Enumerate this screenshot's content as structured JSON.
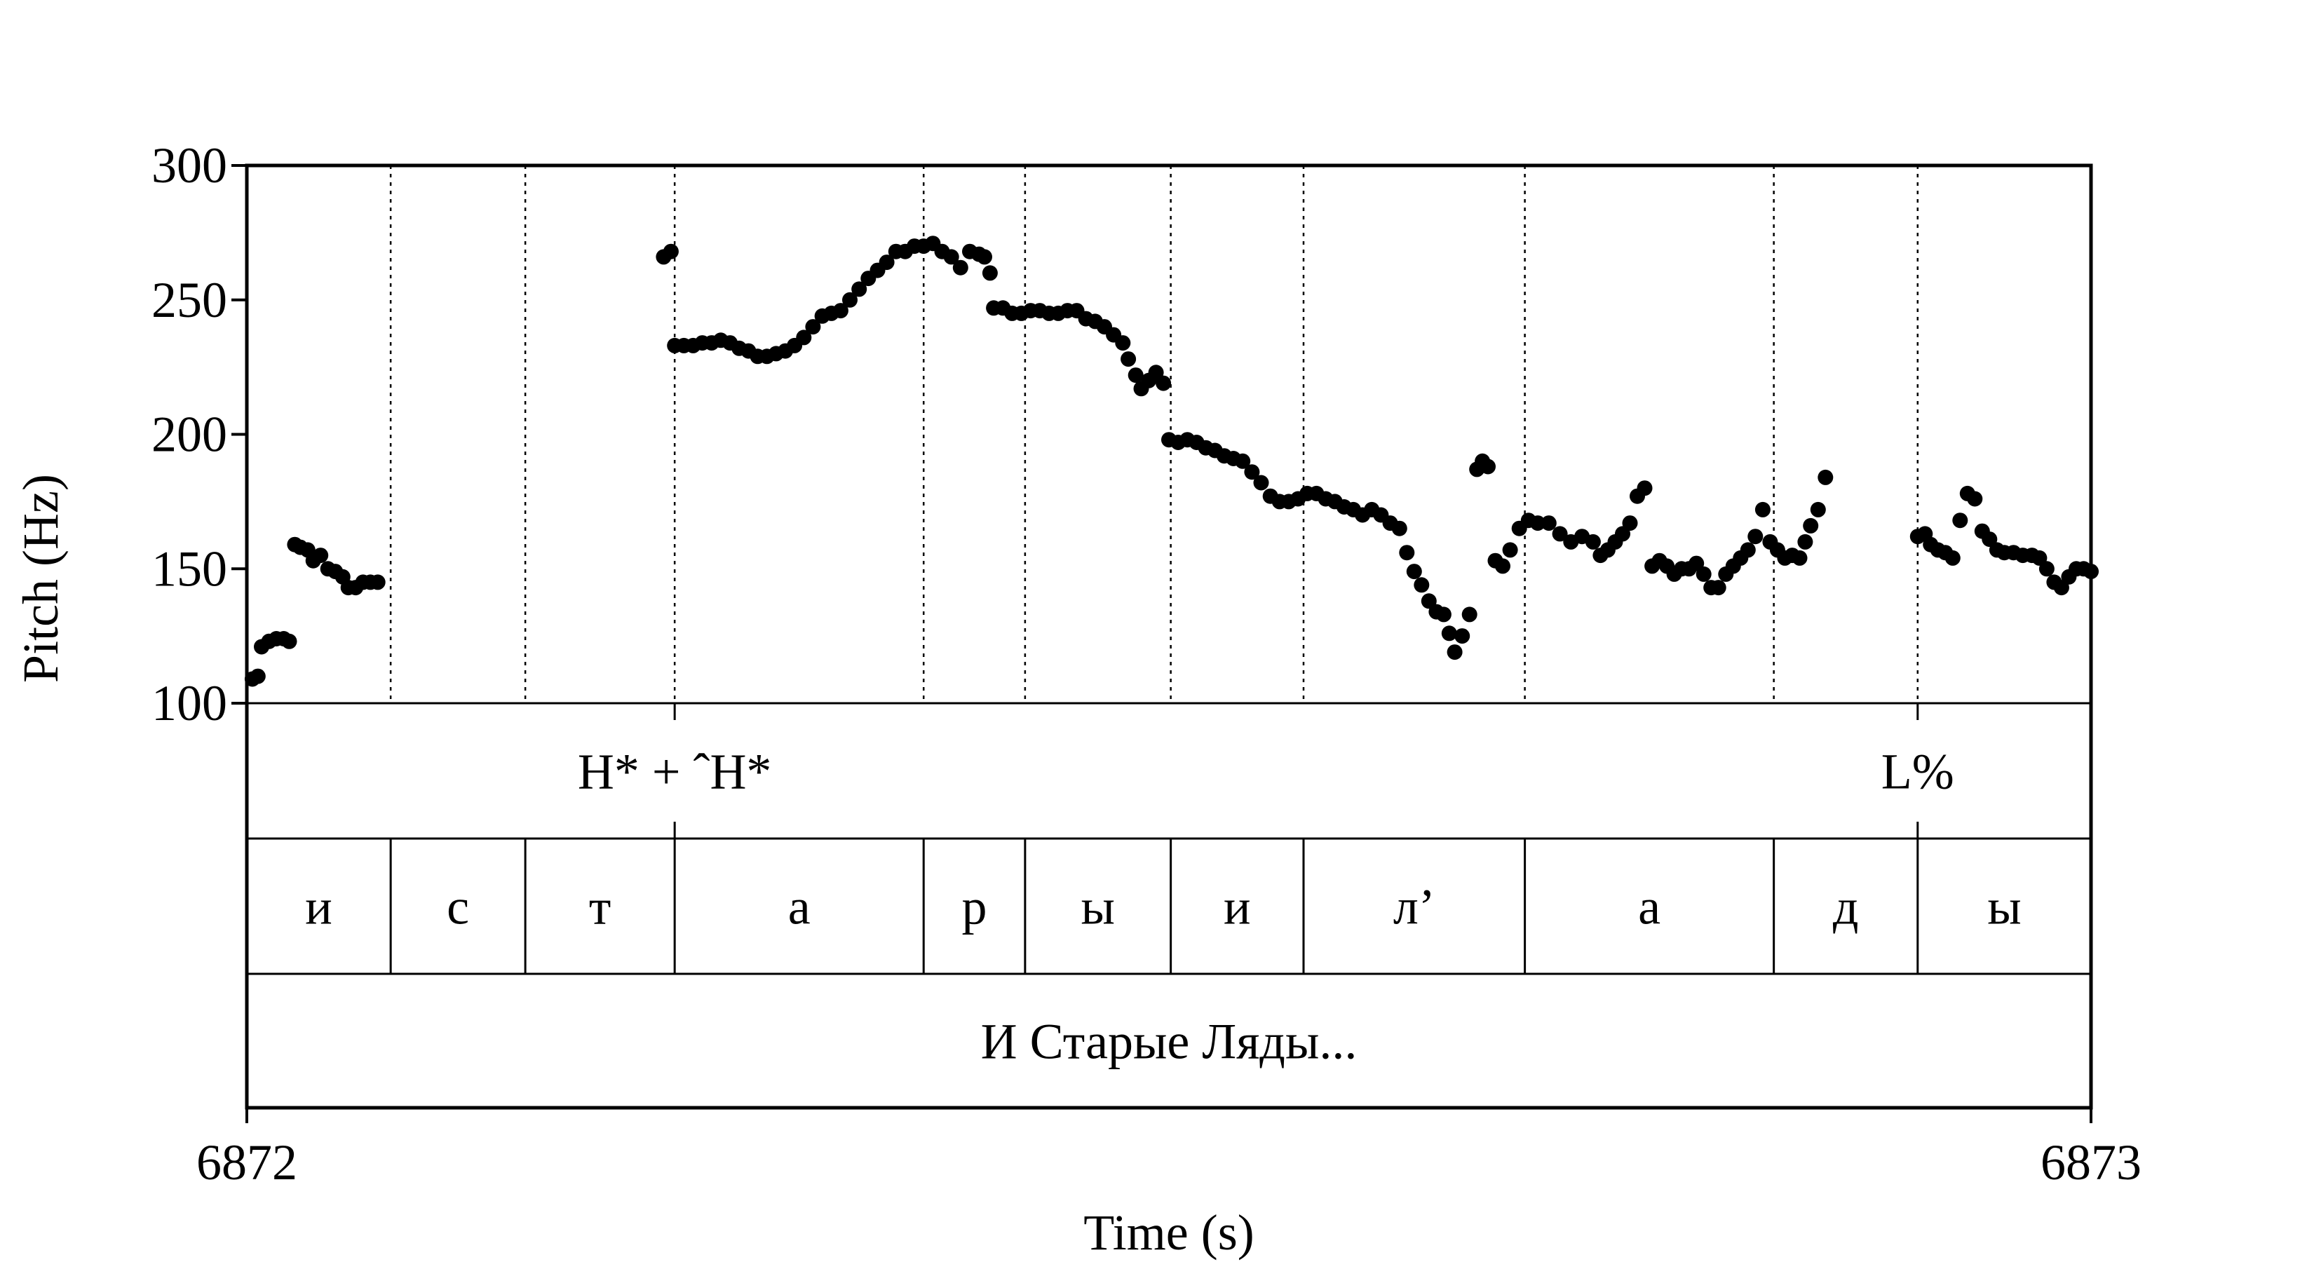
{
  "chart_data": {
    "type": "scatter",
    "title": "",
    "xlabel": "Time (s)",
    "ylabel": "Pitch (Hz)",
    "xlim": [
      6872,
      6873
    ],
    "ylim": [
      100,
      300
    ],
    "x_ticks": [
      "6872",
      "6873"
    ],
    "y_ticks": [
      "100",
      "150",
      "200",
      "250",
      "300"
    ],
    "grid": false,
    "boundaries": [
      6872.078,
      6872.151,
      6872.232,
      6872.367,
      6872.422,
      6872.501,
      6872.573,
      6872.693,
      6872.828,
      6872.906
    ],
    "tiers": {
      "tones": [
        {
          "text": "H* + ˆH*",
          "time": 6872.232
        },
        {
          "text": "L%",
          "time": 6872.906
        }
      ],
      "segments": [
        {
          "text": "и",
          "start": 6872.0,
          "end": 6872.078
        },
        {
          "text": "с",
          "start": 6872.078,
          "end": 6872.151
        },
        {
          "text": "т",
          "start": 6872.151,
          "end": 6872.232
        },
        {
          "text": "а",
          "start": 6872.232,
          "end": 6872.367
        },
        {
          "text": "р",
          "start": 6872.367,
          "end": 6872.422
        },
        {
          "text": "ы",
          "start": 6872.422,
          "end": 6872.501
        },
        {
          "text": "и",
          "start": 6872.501,
          "end": 6872.573
        },
        {
          "text": "л’",
          "start": 6872.573,
          "end": 6872.693
        },
        {
          "text": "а",
          "start": 6872.693,
          "end": 6872.828
        },
        {
          "text": "д",
          "start": 6872.828,
          "end": 6872.906
        },
        {
          "text": "ы",
          "start": 6872.906,
          "end": 6873.0
        }
      ],
      "words": [
        {
          "text": "И Старые Ляды...",
          "start": 6872.0,
          "end": 6873.0
        }
      ]
    },
    "series": [
      {
        "points": [
          [
            6872.003,
            109
          ],
          [
            6872.006,
            110
          ],
          [
            6872.008,
            121
          ],
          [
            6872.012,
            123
          ],
          [
            6872.016,
            124
          ],
          [
            6872.02,
            124
          ],
          [
            6872.023,
            123
          ],
          [
            6872.026,
            159
          ],
          [
            6872.029,
            158
          ],
          [
            6872.033,
            157
          ],
          [
            6872.036,
            153
          ],
          [
            6872.04,
            155
          ],
          [
            6872.044,
            150
          ],
          [
            6872.048,
            149
          ],
          [
            6872.052,
            147
          ],
          [
            6872.055,
            143
          ],
          [
            6872.059,
            143
          ],
          [
            6872.063,
            145
          ],
          [
            6872.067,
            145
          ],
          [
            6872.071,
            145
          ],
          [
            6872.226,
            266
          ],
          [
            6872.23,
            268
          ],
          [
            6872.232,
            233
          ],
          [
            6872.237,
            233
          ],
          [
            6872.242,
            233
          ],
          [
            6872.247,
            234
          ],
          [
            6872.252,
            234
          ],
          [
            6872.257,
            235
          ],
          [
            6872.262,
            234
          ],
          [
            6872.267,
            232
          ],
          [
            6872.272,
            231
          ],
          [
            6872.277,
            229
          ],
          [
            6872.282,
            229
          ],
          [
            6872.287,
            230
          ],
          [
            6872.292,
            231
          ],
          [
            6872.297,
            233
          ],
          [
            6872.302,
            236
          ],
          [
            6872.307,
            240
          ],
          [
            6872.312,
            244
          ],
          [
            6872.317,
            245
          ],
          [
            6872.322,
            246
          ],
          [
            6872.327,
            250
          ],
          [
            6872.332,
            254
          ],
          [
            6872.337,
            258
          ],
          [
            6872.342,
            261
          ],
          [
            6872.347,
            264
          ],
          [
            6872.352,
            268
          ],
          [
            6872.357,
            268
          ],
          [
            6872.362,
            270
          ],
          [
            6872.367,
            270
          ],
          [
            6872.372,
            271
          ],
          [
            6872.377,
            268
          ],
          [
            6872.382,
            266
          ],
          [
            6872.387,
            262
          ],
          [
            6872.392,
            268
          ],
          [
            6872.397,
            267
          ],
          [
            6872.4,
            266
          ],
          [
            6872.403,
            260
          ],
          [
            6872.405,
            247
          ],
          [
            6872.41,
            247
          ],
          [
            6872.415,
            245
          ],
          [
            6872.42,
            245
          ],
          [
            6872.425,
            246
          ],
          [
            6872.43,
            246
          ],
          [
            6872.435,
            245
          ],
          [
            6872.44,
            245
          ],
          [
            6872.445,
            246
          ],
          [
            6872.45,
            246
          ],
          [
            6872.455,
            243
          ],
          [
            6872.46,
            242
          ],
          [
            6872.465,
            240
          ],
          [
            6872.47,
            237
          ],
          [
            6872.475,
            234
          ],
          [
            6872.478,
            228
          ],
          [
            6872.482,
            222
          ],
          [
            6872.485,
            217
          ],
          [
            6872.489,
            220
          ],
          [
            6872.493,
            223
          ],
          [
            6872.497,
            219
          ],
          [
            6872.5,
            198
          ],
          [
            6872.505,
            197
          ],
          [
            6872.51,
            198
          ],
          [
            6872.515,
            197
          ],
          [
            6872.52,
            195
          ],
          [
            6872.525,
            194
          ],
          [
            6872.53,
            192
          ],
          [
            6872.535,
            191
          ],
          [
            6872.54,
            190
          ],
          [
            6872.545,
            186
          ],
          [
            6872.55,
            182
          ],
          [
            6872.555,
            177
          ],
          [
            6872.56,
            175
          ],
          [
            6872.565,
            175
          ],
          [
            6872.57,
            176
          ],
          [
            6872.575,
            178
          ],
          [
            6872.58,
            178
          ],
          [
            6872.585,
            176
          ],
          [
            6872.59,
            175
          ],
          [
            6872.595,
            173
          ],
          [
            6872.6,
            172
          ],
          [
            6872.605,
            170
          ],
          [
            6872.61,
            172
          ],
          [
            6872.615,
            170
          ],
          [
            6872.62,
            167
          ],
          [
            6872.625,
            165
          ],
          [
            6872.629,
            156
          ],
          [
            6872.633,
            149
          ],
          [
            6872.637,
            144
          ],
          [
            6872.641,
            138
          ],
          [
            6872.645,
            134
          ],
          [
            6872.649,
            133
          ],
          [
            6872.652,
            126
          ],
          [
            6872.655,
            119
          ],
          [
            6872.659,
            125
          ],
          [
            6872.663,
            133
          ],
          [
            6872.667,
            187
          ],
          [
            6872.67,
            190
          ],
          [
            6872.673,
            188
          ],
          [
            6872.677,
            153
          ],
          [
            6872.681,
            151
          ],
          [
            6872.685,
            157
          ],
          [
            6872.69,
            165
          ],
          [
            6872.695,
            168
          ],
          [
            6872.7,
            167
          ],
          [
            6872.706,
            167
          ],
          [
            6872.712,
            163
          ],
          [
            6872.718,
            160
          ],
          [
            6872.724,
            162
          ],
          [
            6872.73,
            160
          ],
          [
            6872.734,
            155
          ],
          [
            6872.738,
            157
          ],
          [
            6872.742,
            160
          ],
          [
            6872.746,
            163
          ],
          [
            6872.75,
            167
          ],
          [
            6872.754,
            177
          ],
          [
            6872.758,
            180
          ],
          [
            6872.762,
            151
          ],
          [
            6872.766,
            153
          ],
          [
            6872.77,
            151
          ],
          [
            6872.774,
            148
          ],
          [
            6872.778,
            150
          ],
          [
            6872.782,
            150
          ],
          [
            6872.786,
            152
          ],
          [
            6872.79,
            148
          ],
          [
            6872.794,
            143
          ],
          [
            6872.798,
            143
          ],
          [
            6872.802,
            148
          ],
          [
            6872.806,
            151
          ],
          [
            6872.81,
            154
          ],
          [
            6872.814,
            157
          ],
          [
            6872.818,
            162
          ],
          [
            6872.822,
            172
          ],
          [
            6872.826,
            160
          ],
          [
            6872.83,
            157
          ],
          [
            6872.834,
            154
          ],
          [
            6872.838,
            155
          ],
          [
            6872.842,
            154
          ],
          [
            6872.845,
            160
          ],
          [
            6872.848,
            166
          ],
          [
            6872.852,
            172
          ],
          [
            6872.856,
            184
          ],
          [
            6872.906,
            162
          ],
          [
            6872.91,
            163
          ],
          [
            6872.913,
            159
          ],
          [
            6872.917,
            157
          ],
          [
            6872.921,
            156
          ],
          [
            6872.925,
            154
          ],
          [
            6872.929,
            168
          ],
          [
            6872.933,
            178
          ],
          [
            6872.937,
            176
          ],
          [
            6872.941,
            164
          ],
          [
            6872.945,
            161
          ],
          [
            6872.949,
            157
          ],
          [
            6872.953,
            156
          ],
          [
            6872.958,
            156
          ],
          [
            6872.963,
            155
          ],
          [
            6872.968,
            155
          ],
          [
            6872.972,
            154
          ],
          [
            6872.976,
            150
          ],
          [
            6872.98,
            145
          ],
          [
            6872.984,
            143
          ],
          [
            6872.988,
            147
          ],
          [
            6872.992,
            150
          ],
          [
            6872.996,
            150
          ],
          [
            6873.0,
            149
          ]
        ]
      }
    ]
  }
}
